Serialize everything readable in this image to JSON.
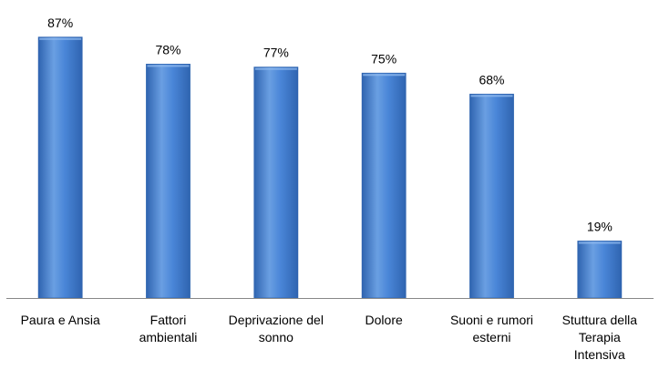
{
  "chart_data": {
    "type": "bar",
    "categories": [
      [
        "Paura e Ansia"
      ],
      [
        "Fattori",
        "ambientali"
      ],
      [
        "Deprivazione del",
        "sonno"
      ],
      [
        "Dolore"
      ],
      [
        "Suoni e rumori",
        "esterni"
      ],
      [
        "Stuttura della",
        "Terapia",
        "Intensiva"
      ]
    ],
    "values": [
      87,
      78,
      77,
      75,
      68,
      19
    ],
    "data_labels": [
      "87%",
      "78%",
      "77%",
      "75%",
      "68%",
      "19%"
    ],
    "ylim": [
      0,
      100
    ],
    "grid": false,
    "legend": "none",
    "title": "",
    "xlabel": "",
    "ylabel": "",
    "colors": {
      "bar_light": "#6A9FE2",
      "bar_mid": "#4A86D8",
      "bar_dark": "#2F64B0",
      "axis": "#888888",
      "text": "#000000"
    }
  }
}
